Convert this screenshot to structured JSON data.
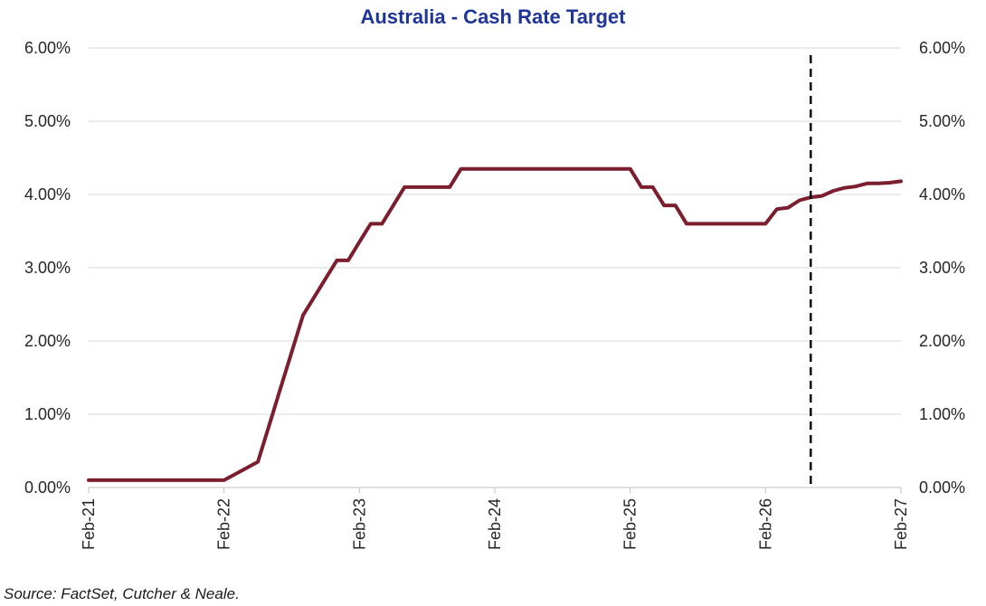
{
  "chart_data": {
    "type": "line",
    "title": "Australia - Cash Rate Target",
    "xlabel": "",
    "ylabel": "",
    "ylim": [
      0,
      6
    ],
    "y_ticks": [
      0,
      1,
      2,
      3,
      4,
      5,
      6
    ],
    "y_tick_labels": [
      "0.00%",
      "1.00%",
      "2.00%",
      "3.00%",
      "4.00%",
      "5.00%",
      "6.00%"
    ],
    "secondary_y_axis": true,
    "x_ticks": [
      "2021-02",
      "2022-02",
      "2023-02",
      "2024-02",
      "2025-02",
      "2026-02",
      "2027-02"
    ],
    "x_tick_labels": [
      "Feb-21",
      "Feb-22",
      "Feb-23",
      "Feb-24",
      "Feb-25",
      "Feb-26",
      "Feb-27"
    ],
    "xlim": [
      "2021-02",
      "2027-02"
    ],
    "grid": true,
    "legend": "none",
    "color": "#7b1e2e",
    "forecast_marker": {
      "x": "2026-06",
      "color": "#000000",
      "style": "dashed"
    },
    "series": [
      {
        "x": [
          "2021-02",
          "2022-02",
          "2022-05",
          "2022-06",
          "2022-07",
          "2022-08",
          "2022-09",
          "2022-10",
          "2022-11",
          "2022-12",
          "2023-01",
          "2023-02",
          "2023-03",
          "2023-04",
          "2023-05",
          "2023-06",
          "2023-07",
          "2023-08",
          "2023-09",
          "2023-10",
          "2023-11",
          "2023-12",
          "2024-01",
          "2024-02",
          "2024-03",
          "2024-04",
          "2024-05",
          "2024-06",
          "2024-07",
          "2024-08",
          "2024-09",
          "2024-10",
          "2024-11",
          "2024-12",
          "2025-01",
          "2025-02",
          "2025-03",
          "2025-04",
          "2025-05",
          "2025-06",
          "2025-07",
          "2025-08",
          "2025-09",
          "2025-10",
          "2025-11",
          "2025-12",
          "2026-01",
          "2026-02",
          "2026-03",
          "2026-04",
          "2026-05",
          "2026-06",
          "2026-07",
          "2026-08",
          "2026-09",
          "2026-10",
          "2026-11",
          "2026-12",
          "2027-01",
          "2027-02"
        ],
        "values": [
          0.1,
          0.1,
          0.35,
          0.85,
          1.35,
          1.85,
          2.35,
          2.6,
          2.85,
          3.1,
          3.1,
          3.35,
          3.6,
          3.6,
          3.85,
          4.1,
          4.1,
          4.1,
          4.1,
          4.1,
          4.35,
          4.35,
          4.35,
          4.35,
          4.35,
          4.35,
          4.35,
          4.35,
          4.35,
          4.35,
          4.35,
          4.35,
          4.35,
          4.35,
          4.35,
          4.35,
          4.1,
          4.1,
          3.85,
          3.85,
          3.6,
          3.6,
          3.6,
          3.6,
          3.6,
          3.6,
          3.6,
          3.6,
          3.8,
          3.82,
          3.92,
          3.96,
          3.98,
          4.05,
          4.09,
          4.11,
          4.15,
          4.15,
          4.16,
          4.18
        ]
      }
    ]
  },
  "source_note": "Source: FactSet, Cutcher & Neale."
}
